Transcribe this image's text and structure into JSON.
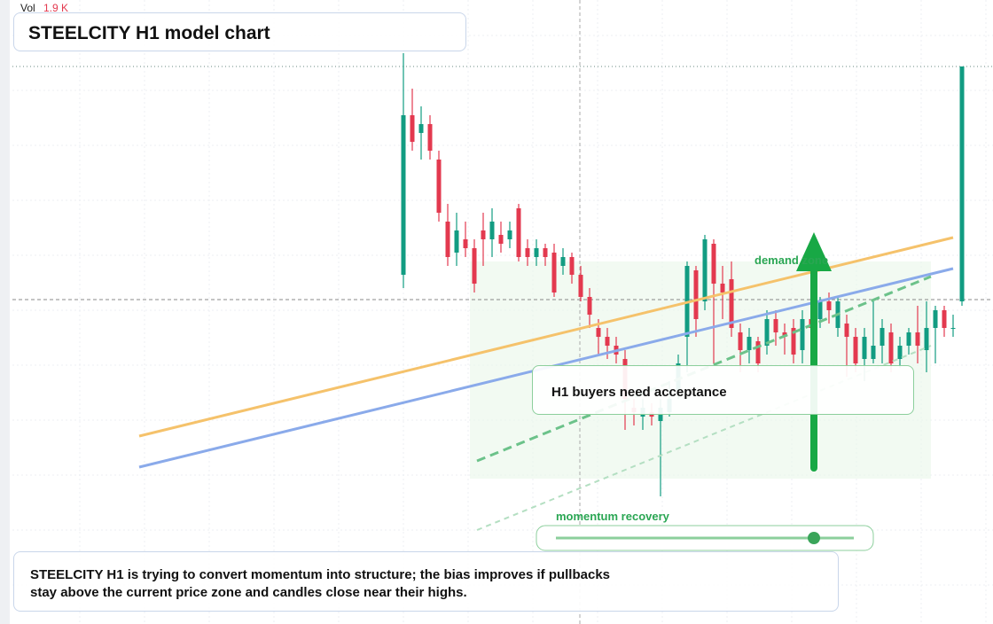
{
  "chart_data": {
    "type": "candlestick",
    "title": "STEELCITY H1 model chart",
    "volume_label": "Vol",
    "volume_value": "1.9 K",
    "zone_label": "demand zone",
    "callout": "H1 buyers need acceptance",
    "slider_label": "momentum recovery",
    "note": "STEELCITY H1 is trying to convert momentum into structure; the bias improves if pullbacks stay above the current price zone and candles close near their highs.",
    "ylim": [
      0,
      110
    ],
    "up_color": "#129c82",
    "down_color": "#e3394f",
    "open": [
      50,
      86,
      82,
      84,
      76,
      62,
      55,
      58,
      56,
      60,
      58,
      59,
      58,
      65,
      56,
      54,
      56,
      55,
      52,
      54,
      50,
      45,
      38,
      36,
      34,
      31,
      20,
      18,
      19,
      17,
      19,
      24,
      36,
      51,
      44,
      57,
      48,
      49,
      37,
      33,
      35,
      34,
      40,
      37,
      38,
      33,
      40,
      40,
      44,
      38,
      39,
      36,
      31,
      31,
      34,
      37,
      31,
      34,
      37,
      33,
      38,
      42,
      38,
      44
    ],
    "high": [
      100,
      92,
      88,
      86,
      78,
      66,
      64,
      62,
      58,
      64,
      65,
      62,
      62,
      66,
      58,
      58,
      57,
      57,
      56,
      55,
      52,
      47,
      40,
      38,
      36,
      33,
      22,
      22,
      21,
      22,
      26,
      32,
      53,
      52,
      59,
      58,
      52,
      53,
      39,
      38,
      36,
      42,
      42,
      39,
      40,
      42,
      44,
      45,
      46,
      45,
      41,
      38,
      38,
      44,
      40,
      39,
      36,
      38,
      43,
      44,
      43,
      43,
      41,
      97
    ],
    "low": [
      47,
      78,
      76,
      76,
      62,
      52,
      52,
      54,
      46,
      52,
      54,
      55,
      56,
      53,
      52,
      52,
      52,
      45,
      50,
      48,
      44,
      38,
      32,
      31,
      30,
      15,
      16,
      15,
      16,
      0,
      18,
      22,
      28,
      36,
      42,
      30,
      40,
      36,
      28,
      30,
      28,
      32,
      34,
      32,
      30,
      30,
      36,
      38,
      39,
      36,
      27,
      28,
      26,
      30,
      30,
      28,
      29,
      32,
      30,
      28,
      30,
      36,
      36,
      43
    ],
    "close": [
      86,
      80,
      84,
      78,
      64,
      54,
      60,
      56,
      48,
      58,
      62,
      57,
      60,
      54,
      54,
      56,
      54,
      46,
      54,
      50,
      45,
      41,
      36,
      34,
      32,
      22,
      19,
      20,
      18,
      20,
      22,
      30,
      52,
      40,
      58,
      48,
      46,
      38,
      33,
      36,
      30,
      40,
      37,
      36,
      32,
      40,
      38,
      44,
      42,
      44,
      36,
      30,
      36,
      34,
      38,
      30,
      34,
      37,
      34,
      38,
      42,
      38,
      38,
      97
    ]
  }
}
